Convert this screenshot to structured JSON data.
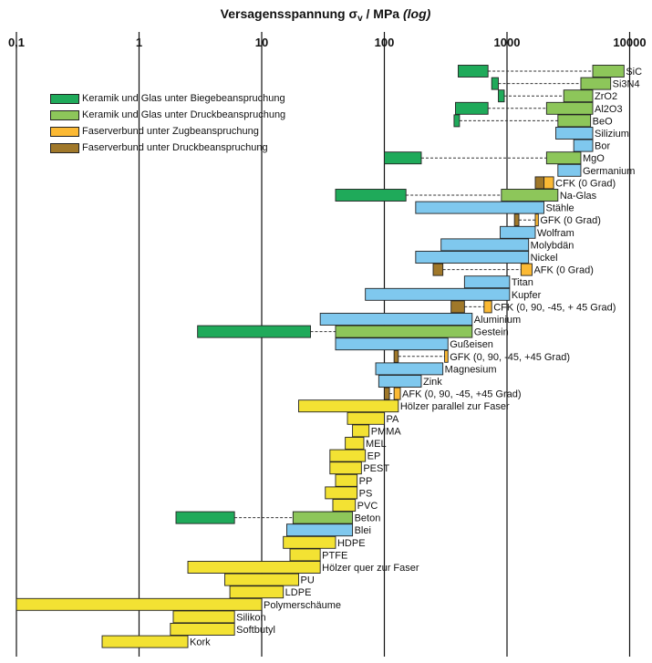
{
  "chart_data": {
    "type": "bar",
    "title": "Versagensspannung σ",
    "title_sub": "v",
    "title_unit": " / MPa ",
    "title_scale": "(log)",
    "xscale": "log",
    "xlim": [
      0.1,
      15000
    ],
    "x_ticks": [
      "0,1",
      "1",
      "10",
      "100",
      "1000",
      "10000"
    ],
    "x_tick_values": [
      0.1,
      1,
      10,
      100,
      1000,
      10000
    ],
    "grid": true,
    "legend_position": "top-left",
    "colors": {
      "biege": "#1faa5a",
      "druck": "#8dc65a",
      "zug_fv": "#fbb934",
      "druck_fv": "#a0782a",
      "metal": "#7fc8ee",
      "poly": "#f3e233"
    },
    "legend": [
      {
        "key": "biege",
        "label": "Keramik und Glas unter Biegebeanspruchung"
      },
      {
        "key": "druck",
        "label": "Keramik und Glas unter Druckbeanspruchung"
      },
      {
        "key": "zug_fv",
        "label": "Faserverbund unter Zugbeanspruchung"
      },
      {
        "key": "druck_fv",
        "label": "Faserverbund unter Druckbeanspruchung"
      }
    ],
    "materials": [
      {
        "name": "SiC",
        "ranges": [
          {
            "key": "biege",
            "min": 400,
            "max": 700
          },
          {
            "key": "druck",
            "min": 5000,
            "max": 9000
          }
        ]
      },
      {
        "name": "Si3N4",
        "ranges": [
          {
            "key": "biege",
            "min": 750,
            "max": 850
          },
          {
            "key": "druck",
            "min": 4000,
            "max": 7000
          }
        ]
      },
      {
        "name": "ZrO2",
        "ranges": [
          {
            "key": "biege",
            "min": 850,
            "max": 950
          },
          {
            "key": "druck",
            "min": 2900,
            "max": 5000
          }
        ]
      },
      {
        "name": "Al2O3",
        "ranges": [
          {
            "key": "biege",
            "min": 380,
            "max": 700
          },
          {
            "key": "druck",
            "min": 2100,
            "max": 5000
          }
        ]
      },
      {
        "name": "BeO",
        "ranges": [
          {
            "key": "biege",
            "min": 370,
            "max": 410
          },
          {
            "key": "druck",
            "min": 2600,
            "max": 4800
          }
        ]
      },
      {
        "name": "Silizium",
        "ranges": [
          {
            "key": "metal",
            "min": 2500,
            "max": 5000
          }
        ]
      },
      {
        "name": "Bor",
        "ranges": [
          {
            "key": "metal",
            "min": 3500,
            "max": 5000
          }
        ]
      },
      {
        "name": "MgO",
        "ranges": [
          {
            "key": "biege",
            "min": 100,
            "max": 200
          },
          {
            "key": "druck",
            "min": 2100,
            "max": 4000
          }
        ]
      },
      {
        "name": "Germanium",
        "ranges": [
          {
            "key": "metal",
            "min": 2600,
            "max": 4000
          }
        ]
      },
      {
        "name": "CFK (0 Grad)",
        "ranges": [
          {
            "key": "druck_fv",
            "min": 1700,
            "max": 2000
          },
          {
            "key": "zug_fv",
            "min": 2000,
            "max": 2400
          }
        ]
      },
      {
        "name": "Na-Glas",
        "ranges": [
          {
            "key": "biege",
            "min": 40,
            "max": 150
          },
          {
            "key": "druck",
            "min": 900,
            "max": 2600
          }
        ]
      },
      {
        "name": "Stähle",
        "ranges": [
          {
            "key": "metal",
            "min": 180,
            "max": 2000
          }
        ]
      },
      {
        "name": "GFK (0 Grad)",
        "ranges": [
          {
            "key": "druck_fv",
            "min": 1150,
            "max": 1250
          },
          {
            "key": "zug_fv",
            "min": 1700,
            "max": 1800
          }
        ]
      },
      {
        "name": "Wolfram",
        "ranges": [
          {
            "key": "metal",
            "min": 880,
            "max": 1700
          }
        ]
      },
      {
        "name": "Molybdän",
        "ranges": [
          {
            "key": "metal",
            "min": 290,
            "max": 1500
          }
        ]
      },
      {
        "name": "Nickel",
        "ranges": [
          {
            "key": "metal",
            "min": 180,
            "max": 1500
          }
        ]
      },
      {
        "name": "AFK (0 Grad)",
        "ranges": [
          {
            "key": "druck_fv",
            "min": 250,
            "max": 300
          },
          {
            "key": "zug_fv",
            "min": 1300,
            "max": 1600
          }
        ]
      },
      {
        "name": "Titan",
        "ranges": [
          {
            "key": "metal",
            "min": 450,
            "max": 1050
          }
        ]
      },
      {
        "name": "Kupfer",
        "ranges": [
          {
            "key": "metal",
            "min": 70,
            "max": 1050
          }
        ]
      },
      {
        "name": "CFK (0, 90, -45, + 45 Grad)",
        "ranges": [
          {
            "key": "druck_fv",
            "min": 350,
            "max": 450
          },
          {
            "key": "zug_fv",
            "min": 650,
            "max": 750
          }
        ]
      },
      {
        "name": "Aluminium",
        "ranges": [
          {
            "key": "metal",
            "min": 30,
            "max": 520
          }
        ]
      },
      {
        "name": "Gestein",
        "ranges": [
          {
            "key": "biege",
            "min": 3,
            "max": 25
          },
          {
            "key": "druck",
            "min": 40,
            "max": 520
          }
        ]
      },
      {
        "name": "Gußeisen",
        "ranges": [
          {
            "key": "metal",
            "min": 40,
            "max": 330
          }
        ]
      },
      {
        "name": "GFK (0, 90, -45, +45 Grad)",
        "ranges": [
          {
            "key": "druck_fv",
            "min": 120,
            "max": 130
          },
          {
            "key": "zug_fv",
            "min": 310,
            "max": 330
          }
        ]
      },
      {
        "name": "Magnesium",
        "ranges": [
          {
            "key": "metal",
            "min": 85,
            "max": 300
          }
        ]
      },
      {
        "name": "Zink",
        "ranges": [
          {
            "key": "metal",
            "min": 90,
            "max": 200
          }
        ]
      },
      {
        "name": "AFK (0, 90, -45, +45 Grad)",
        "ranges": [
          {
            "key": "druck_fv",
            "min": 100,
            "max": 110
          },
          {
            "key": "zug_fv",
            "min": 120,
            "max": 135
          }
        ]
      },
      {
        "name": "Hölzer parallel zur Faser",
        "ranges": [
          {
            "key": "poly",
            "min": 20,
            "max": 130
          }
        ]
      },
      {
        "name": "PA",
        "ranges": [
          {
            "key": "poly",
            "min": 50,
            "max": 100
          }
        ]
      },
      {
        "name": "PMMA",
        "ranges": [
          {
            "key": "poly",
            "min": 55,
            "max": 75
          }
        ]
      },
      {
        "name": "MEL",
        "ranges": [
          {
            "key": "poly",
            "min": 48,
            "max": 68
          }
        ]
      },
      {
        "name": "EP",
        "ranges": [
          {
            "key": "poly",
            "min": 36,
            "max": 70
          }
        ]
      },
      {
        "name": "PEST",
        "ranges": [
          {
            "key": "poly",
            "min": 36,
            "max": 65
          }
        ]
      },
      {
        "name": "PP",
        "ranges": [
          {
            "key": "poly",
            "min": 40,
            "max": 60
          }
        ]
      },
      {
        "name": "PS",
        "ranges": [
          {
            "key": "poly",
            "min": 33,
            "max": 60
          }
        ]
      },
      {
        "name": "PVC",
        "ranges": [
          {
            "key": "poly",
            "min": 38,
            "max": 58
          }
        ]
      },
      {
        "name": "Beton",
        "ranges": [
          {
            "key": "biege",
            "min": 2,
            "max": 6
          },
          {
            "key": "druck",
            "min": 18,
            "max": 55
          }
        ]
      },
      {
        "name": "Blei",
        "ranges": [
          {
            "key": "metal",
            "min": 16,
            "max": 55
          }
        ]
      },
      {
        "name": "HDPE",
        "ranges": [
          {
            "key": "poly",
            "min": 15,
            "max": 40
          }
        ]
      },
      {
        "name": "PTFE",
        "ranges": [
          {
            "key": "poly",
            "min": 17,
            "max": 30
          }
        ]
      },
      {
        "name": "Hölzer quer zur Faser",
        "ranges": [
          {
            "key": "poly",
            "min": 2.5,
            "max": 30
          }
        ]
      },
      {
        "name": "PU",
        "ranges": [
          {
            "key": "poly",
            "min": 5,
            "max": 20
          }
        ]
      },
      {
        "name": "LDPE",
        "ranges": [
          {
            "key": "poly",
            "min": 5.5,
            "max": 15
          }
        ]
      },
      {
        "name": "Polymerschäume",
        "ranges": [
          {
            "key": "poly",
            "min": 0.1,
            "max": 10
          }
        ]
      },
      {
        "name": "Silikon",
        "ranges": [
          {
            "key": "poly",
            "min": 1.9,
            "max": 6
          }
        ]
      },
      {
        "name": "Softbutyl",
        "ranges": [
          {
            "key": "poly",
            "min": 1.8,
            "max": 6
          }
        ]
      },
      {
        "name": "Kork",
        "ranges": [
          {
            "key": "poly",
            "min": 0.5,
            "max": 2.5
          }
        ]
      }
    ]
  }
}
